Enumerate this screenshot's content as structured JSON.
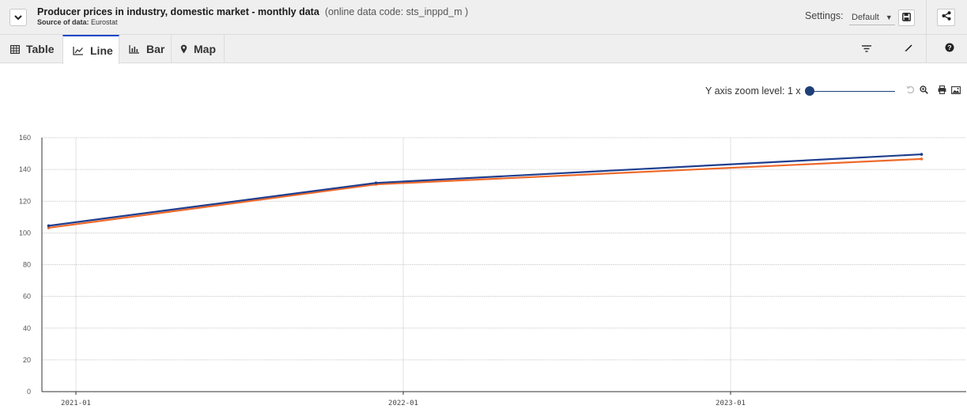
{
  "header": {
    "title": "Producer prices in industry, domestic market - monthly data",
    "data_code": "(online data code: sts_inppd_m )",
    "source_label": "Source of data:",
    "source_value": "Eurostat",
    "settings_label": "Settings:",
    "settings_value": "Default"
  },
  "tabs": [
    {
      "label": "Table",
      "icon": "table-icon",
      "active": false
    },
    {
      "label": "Line",
      "icon": "line-chart-icon",
      "active": true
    },
    {
      "label": "Bar",
      "icon": "bar-chart-icon",
      "active": false
    },
    {
      "label": "Map",
      "icon": "map-marker-icon",
      "active": false
    }
  ],
  "toolbar_icons": [
    "filter-icon",
    "pencil-icon",
    "help-icon"
  ],
  "zoom": {
    "label": "Y axis zoom level: 1 x",
    "level": 1,
    "min": 1,
    "max": 10
  },
  "zoom_icons": [
    "reset-icon",
    "zoom-icon",
    "print-icon",
    "image-icon"
  ],
  "colors": {
    "accent": "#0e47cb",
    "series_1": "#1f3f8f",
    "series_2": "#ee6a2c"
  },
  "chart_data": {
    "type": "line",
    "title": "",
    "xlabel": "",
    "ylabel": "",
    "ylim": [
      0,
      160
    ],
    "yticks": [
      0,
      20,
      40,
      60,
      80,
      100,
      120,
      140,
      160
    ],
    "xticks": [
      "2021-01",
      "2022-01",
      "2023-01"
    ],
    "x": [
      "2020-12",
      "2021-12",
      "2023-08"
    ],
    "series": [
      {
        "color": "#1f3f8f",
        "values": [
          104.5,
          131.5,
          149.5
        ]
      },
      {
        "color": "#ee6a2c",
        "values": [
          103.2,
          130.6,
          146.6
        ]
      }
    ],
    "grid": true
  }
}
